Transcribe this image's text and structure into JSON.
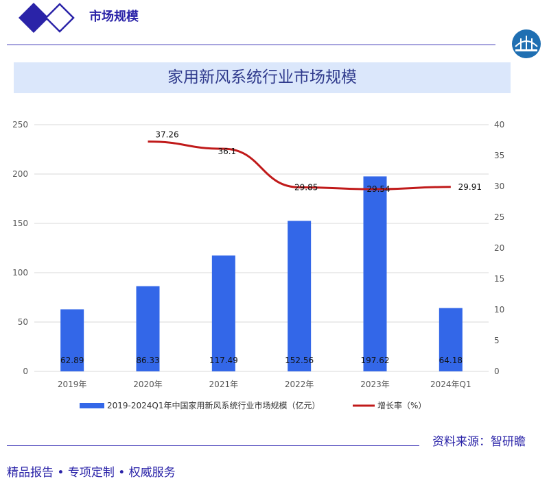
{
  "header": {
    "section_title": "市场规模"
  },
  "banner": {
    "title": "家用新风系统行业市场规模"
  },
  "footer": {
    "source": "资料来源：智研瞻",
    "slogan": "精品报告 •  专项定制 • 权威服务"
  },
  "colors": {
    "bar": "#3367e8",
    "line": "#c01a1a",
    "accent": "#2a23a8",
    "band": "#dbe7fb"
  },
  "icons": {
    "logo": "double-diamond-logo",
    "badge": "bridge-emblem-icon"
  },
  "chart_data": {
    "type": "bar",
    "categories": [
      "2019年",
      "2020年",
      "2021年",
      "2022年",
      "2023年",
      "2024年Q1"
    ],
    "series": [
      {
        "name": "2019-2024Q1年中国家用新风系统行业市场规模（亿元）",
        "axis": "left",
        "values": [
          62.89,
          86.33,
          117.49,
          152.56,
          197.62,
          64.18
        ],
        "labels": [
          "62.89",
          "86.33",
          "117.49",
          "152.56",
          "197.62",
          "64.18"
        ]
      },
      {
        "name": "增长率（%）",
        "axis": "right",
        "type": "line",
        "values": [
          null,
          37.26,
          36.1,
          29.85,
          29.54,
          29.91
        ],
        "labels": [
          "",
          "37.26",
          "36.1",
          "29.85",
          "29.54",
          "29.91"
        ]
      }
    ],
    "y_left": {
      "lim": [
        0,
        250
      ],
      "ticks": [
        "0",
        "50",
        "100",
        "150",
        "200",
        "250"
      ]
    },
    "y_right": {
      "lim": [
        0,
        40
      ],
      "ticks": [
        "0",
        "5",
        "10",
        "15",
        "20",
        "25",
        "30",
        "35",
        "40"
      ]
    },
    "grid": true,
    "legend": "bottom"
  }
}
